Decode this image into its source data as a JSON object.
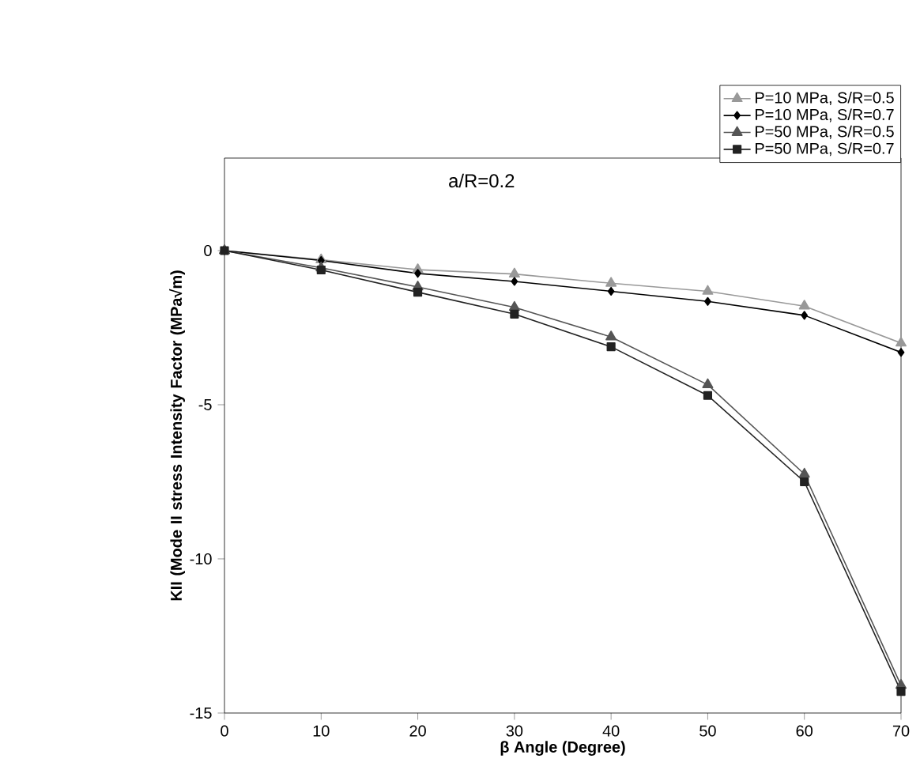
{
  "chart_data": {
    "type": "line",
    "title": "a/R=0.2",
    "xlabel": "β Angle (Degree)",
    "ylabel": "KII (Mode II stress Intensity Factor (MPa√m)",
    "x": [
      0,
      10,
      20,
      30,
      40,
      50,
      60,
      70
    ],
    "series": [
      {
        "name": "P=10 MPa, S/R=0.5",
        "color": "#999999",
        "marker": "triangle",
        "values": [
          0,
          -0.3,
          -0.62,
          -0.76,
          -1.06,
          -1.32,
          -1.8,
          -3.0
        ]
      },
      {
        "name": "P=10 MPa, S/R=0.7",
        "color": "#000000",
        "marker": "diamond",
        "values": [
          0,
          -0.32,
          -0.74,
          -1.0,
          -1.32,
          -1.65,
          -2.1,
          -3.3
        ]
      },
      {
        "name": "P=50 MPa, S/R=0.5",
        "color": "#555555",
        "marker": "triangle",
        "values": [
          0,
          -0.56,
          -1.18,
          -1.84,
          -2.8,
          -4.35,
          -7.25,
          -14.1
        ]
      },
      {
        "name": "P=50 MPa, S/R=0.7",
        "color": "#222222",
        "marker": "square",
        "values": [
          0,
          -0.63,
          -1.35,
          -2.06,
          -3.12,
          -4.7,
          -7.5,
          -14.3
        ]
      }
    ],
    "xlim": [
      0,
      70
    ],
    "ylim": [
      -15,
      3
    ],
    "xticks": [
      0,
      10,
      20,
      30,
      40,
      50,
      60,
      70
    ],
    "yticks": [
      0,
      -5,
      -10,
      -15
    ],
    "grid": false,
    "legend": "top right",
    "line_style": "solid"
  }
}
